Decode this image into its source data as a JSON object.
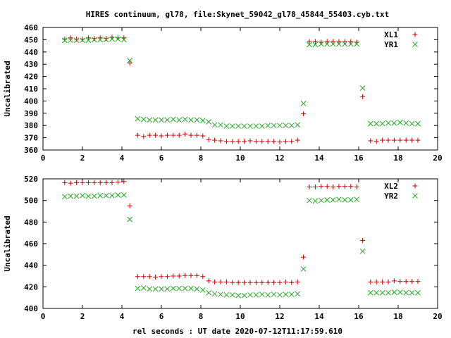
{
  "chart_data": {
    "title": "HIRES continuum, gl78, file:Skynet_59042_gl78_45844_55403.cyb.txt",
    "xlabel": "rel seconds : UT date 2020-07-12T11:17:59.610",
    "colors": {
      "series1": "#cc0000",
      "series2": "#22aa22"
    },
    "panels": [
      {
        "type": "scatter",
        "ylabel": "Uncalibrated",
        "xlim": [
          0,
          20
        ],
        "ylim": [
          360,
          460
        ],
        "xticks": [
          0,
          2,
          4,
          6,
          8,
          10,
          12,
          14,
          16,
          18,
          20
        ],
        "yticks": [
          360,
          370,
          380,
          390,
          400,
          410,
          420,
          430,
          440,
          450,
          460
        ],
        "legend_position": "top-right",
        "series": [
          {
            "name": "XL1",
            "marker": "plus",
            "x": [
              1.1,
              1.4,
              1.7,
              2.0,
              2.3,
              2.6,
              2.9,
              3.2,
              3.5,
              3.8,
              4.1,
              4.4,
              4.8,
              5.1,
              5.4,
              5.7,
              6.0,
              6.3,
              6.6,
              6.9,
              7.2,
              7.5,
              7.8,
              8.1,
              8.4,
              8.7,
              9.0,
              9.3,
              9.6,
              9.9,
              10.2,
              10.5,
              10.8,
              11.1,
              11.4,
              11.7,
              12.0,
              12.3,
              12.6,
              12.9,
              13.2,
              13.5,
              13.8,
              14.1,
              14.4,
              14.7,
              15.0,
              15.3,
              15.6,
              15.9,
              16.2,
              16.6,
              16.9,
              17.2,
              17.5,
              17.8,
              18.1,
              18.4,
              18.7,
              19.0
            ],
            "y": [
              450.5,
              451.5,
              450.5,
              450.5,
              451.5,
              451,
              451.5,
              451,
              452,
              451.5,
              451.5,
              431,
              372,
              371,
              372,
              372,
              371.5,
              372,
              372,
              372,
              373,
              372,
              372,
              371.5,
              368.5,
              368,
              367.5,
              367,
              367,
              367,
              367,
              367.5,
              367,
              367,
              367,
              367,
              366.5,
              367,
              367,
              368,
              389.5,
              448.5,
              448.5,
              448,
              448.5,
              448.5,
              448.5,
              448.5,
              448.5,
              448,
              403.5,
              367.5,
              367,
              368,
              368,
              368,
              368,
              368,
              368,
              368
            ]
          },
          {
            "name": "YR1",
            "marker": "cross",
            "x": [
              1.1,
              1.4,
              1.7,
              2.0,
              2.3,
              2.6,
              2.9,
              3.2,
              3.5,
              3.8,
              4.1,
              4.4,
              4.8,
              5.1,
              5.4,
              5.7,
              6.0,
              6.3,
              6.6,
              6.9,
              7.2,
              7.5,
              7.8,
              8.1,
              8.4,
              8.7,
              9.0,
              9.3,
              9.6,
              9.9,
              10.2,
              10.5,
              10.8,
              11.1,
              11.4,
              11.7,
              12.0,
              12.3,
              12.6,
              12.9,
              13.2,
              13.5,
              13.8,
              14.1,
              14.4,
              14.7,
              15.0,
              15.3,
              15.6,
              15.9,
              16.2,
              16.6,
              16.9,
              17.2,
              17.5,
              17.8,
              18.1,
              18.4,
              18.7,
              19.0
            ],
            "y": [
              449.5,
              449.5,
              449.5,
              449.5,
              449.5,
              450,
              450,
              450,
              450.5,
              450.5,
              450,
              433,
              385.5,
              385,
              384.5,
              384.5,
              384.5,
              384.5,
              385,
              384.5,
              385,
              384.5,
              384.5,
              384,
              383,
              380.5,
              380.5,
              379.5,
              379.5,
              379.5,
              379.5,
              379.5,
              379.5,
              379.5,
              380,
              380,
              380,
              380,
              380,
              380.5,
              398,
              446,
              446,
              446.5,
              446.5,
              446.5,
              446.5,
              446.5,
              446.5,
              446.5,
              410.5,
              381.5,
              381.5,
              381.5,
              382,
              382,
              382.5,
              382,
              381.5,
              381.5
            ]
          }
        ]
      },
      {
        "type": "scatter",
        "ylabel": "Uncalibrated",
        "xlim": [
          0,
          20
        ],
        "ylim": [
          400,
          520
        ],
        "xticks": [
          0,
          2,
          4,
          6,
          8,
          10,
          12,
          14,
          16,
          18,
          20
        ],
        "yticks": [
          400,
          420,
          440,
          460,
          480,
          500,
          520
        ],
        "legend_position": "top-right",
        "series": [
          {
            "name": "XL2",
            "marker": "plus",
            "x": [
              1.1,
              1.4,
              1.7,
              2.0,
              2.3,
              2.6,
              2.9,
              3.2,
              3.5,
              3.8,
              4.1,
              4.4,
              4.8,
              5.1,
              5.4,
              5.7,
              6.0,
              6.3,
              6.6,
              6.9,
              7.2,
              7.5,
              7.8,
              8.1,
              8.4,
              8.7,
              9.0,
              9.3,
              9.6,
              9.9,
              10.2,
              10.5,
              10.8,
              11.1,
              11.4,
              11.7,
              12.0,
              12.3,
              12.6,
              12.9,
              13.2,
              13.5,
              13.8,
              14.1,
              14.4,
              14.7,
              15.0,
              15.3,
              15.6,
              15.9,
              16.2,
              16.6,
              16.9,
              17.2,
              17.5,
              17.8,
              18.1,
              18.4,
              18.7,
              19.0
            ],
            "y": [
              516.5,
              516,
              516.5,
              516.5,
              516.5,
              516.5,
              516.5,
              516.5,
              516.5,
              517,
              517.5,
              495,
              429.5,
              429.5,
              429.5,
              429,
              429.5,
              429.5,
              430,
              430,
              430.5,
              430.5,
              430.5,
              429.5,
              425.5,
              424.5,
              424.5,
              424.5,
              424,
              424,
              424,
              424,
              424,
              424,
              424,
              424,
              424,
              424.5,
              424,
              424.5,
              447.5,
              512.5,
              512.5,
              513,
              513,
              512.5,
              513,
              513,
              513,
              512.5,
              463,
              424.5,
              424.5,
              424.5,
              424.5,
              425.5,
              425,
              425,
              425,
              425
            ]
          },
          {
            "name": "YR2",
            "marker": "cross",
            "x": [
              1.1,
              1.4,
              1.7,
              2.0,
              2.3,
              2.6,
              2.9,
              3.2,
              3.5,
              3.8,
              4.1,
              4.4,
              4.8,
              5.1,
              5.4,
              5.7,
              6.0,
              6.3,
              6.6,
              6.9,
              7.2,
              7.5,
              7.8,
              8.1,
              8.4,
              8.7,
              9.0,
              9.3,
              9.6,
              9.9,
              10.2,
              10.5,
              10.8,
              11.1,
              11.4,
              11.7,
              12.0,
              12.3,
              12.6,
              12.9,
              13.2,
              13.5,
              13.8,
              14.1,
              14.4,
              14.7,
              15.0,
              15.3,
              15.6,
              15.9,
              16.2,
              16.6,
              16.9,
              17.2,
              17.5,
              17.8,
              18.1,
              18.4,
              18.7,
              19.0
            ],
            "y": [
              503.5,
              504,
              504,
              504.5,
              504,
              504,
              504.5,
              504.5,
              504.5,
              505,
              505,
              482.5,
              418.5,
              419,
              418,
              418,
              418,
              418,
              418.5,
              418.5,
              418.5,
              418.5,
              418,
              417,
              414.5,
              413.5,
              413,
              412.5,
              412.5,
              412,
              412,
              412.5,
              412.5,
              413,
              412.5,
              413,
              412.5,
              413,
              413,
              413.5,
              436.5,
              500,
              499.5,
              500,
              500.5,
              500.5,
              501,
              500.5,
              500.5,
              501,
              453,
              414.5,
              414.5,
              414.5,
              414.5,
              415,
              415,
              414.5,
              414.5,
              414.5
            ]
          }
        ]
      }
    ]
  }
}
